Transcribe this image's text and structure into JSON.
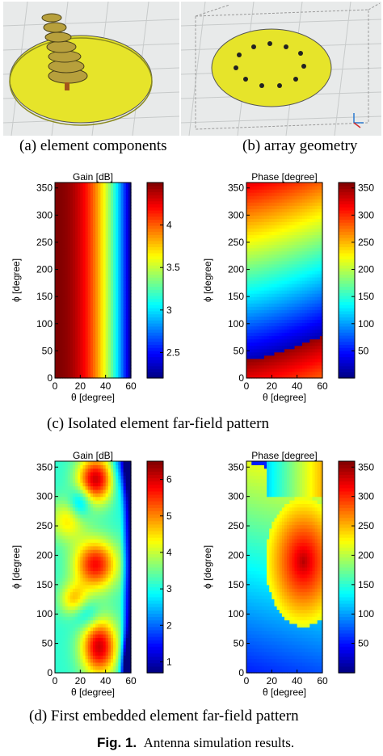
{
  "photos": {
    "a_caption": "(a) element components",
    "b_caption": "(b) array geometry"
  },
  "captions": {
    "c": "(c) Isolated element far-field pattern",
    "d": "(d) First embedded element far-field pattern",
    "fig_label": "Fig. 1.",
    "fig_text": "Antenna simulation results."
  },
  "chart_data": [
    {
      "type": "heatmap",
      "title": "Gain [dB]",
      "xlabel": "θ [degree]",
      "ylabel": "ϕ [degree]",
      "xlim": [
        0,
        60
      ],
      "ylim": [
        0,
        360
      ],
      "xticks": [
        "0",
        "20",
        "40",
        "60"
      ],
      "yticks": [
        "0",
        "50",
        "100",
        "150",
        "200",
        "250",
        "300",
        "350"
      ],
      "colorbar": {
        "range": [
          2.2,
          4.5
        ],
        "ticks": [
          "2.5",
          "3",
          "3.5",
          "4"
        ]
      },
      "pattern": "gain varies with θ only: ~4.4 dB at θ=0 decreasing to ~2.3 dB at θ=60"
    },
    {
      "type": "heatmap",
      "title": "Phase [degree]",
      "xlabel": "θ [degree]",
      "ylabel": "ϕ [degree]",
      "xlim": [
        0,
        60
      ],
      "ylim": [
        0,
        360
      ],
      "xticks": [
        "0",
        "20",
        "40",
        "60"
      ],
      "yticks": [
        "0",
        "50",
        "100",
        "150",
        "200",
        "250",
        "300",
        "350"
      ],
      "colorbar": {
        "range": [
          0,
          360
        ],
        "ticks": [
          "50",
          "100",
          "150",
          "200",
          "250",
          "300",
          "350"
        ]
      },
      "pattern": "phase increases with ϕ, wrapping near ϕ≈40–90"
    },
    {
      "type": "heatmap",
      "title": "Gain [dB]",
      "xlabel": "θ [degree]",
      "ylabel": "ϕ [degree]",
      "xlim": [
        0,
        60
      ],
      "ylim": [
        0,
        360
      ],
      "xticks": [
        "0",
        "20",
        "40",
        "60"
      ],
      "yticks": [
        "0",
        "50",
        "100",
        "150",
        "200",
        "250",
        "300",
        "350"
      ],
      "colorbar": {
        "range": [
          0.7,
          6.5
        ],
        "ticks": [
          "1",
          "2",
          "3",
          "4",
          "5",
          "6"
        ]
      },
      "pattern": "irregular lobes; maxima near (35,45), (30,180), (30,330)"
    },
    {
      "type": "heatmap",
      "title": "Phase  [degree]",
      "xlabel": "θ [degree]",
      "ylabel": "ϕ [degree]",
      "xlim": [
        0,
        60
      ],
      "ylim": [
        0,
        360
      ],
      "xticks": [
        "0",
        "20",
        "40",
        "60"
      ],
      "yticks": [
        "0",
        "50",
        "100",
        "150",
        "200",
        "250",
        "300",
        "350"
      ],
      "colorbar": {
        "range": [
          0,
          360
        ],
        "ticks": [
          "50",
          "100",
          "150",
          "200",
          "250",
          "300",
          "350"
        ]
      },
      "pattern": "phase wrapping pattern with saddle structure"
    }
  ]
}
